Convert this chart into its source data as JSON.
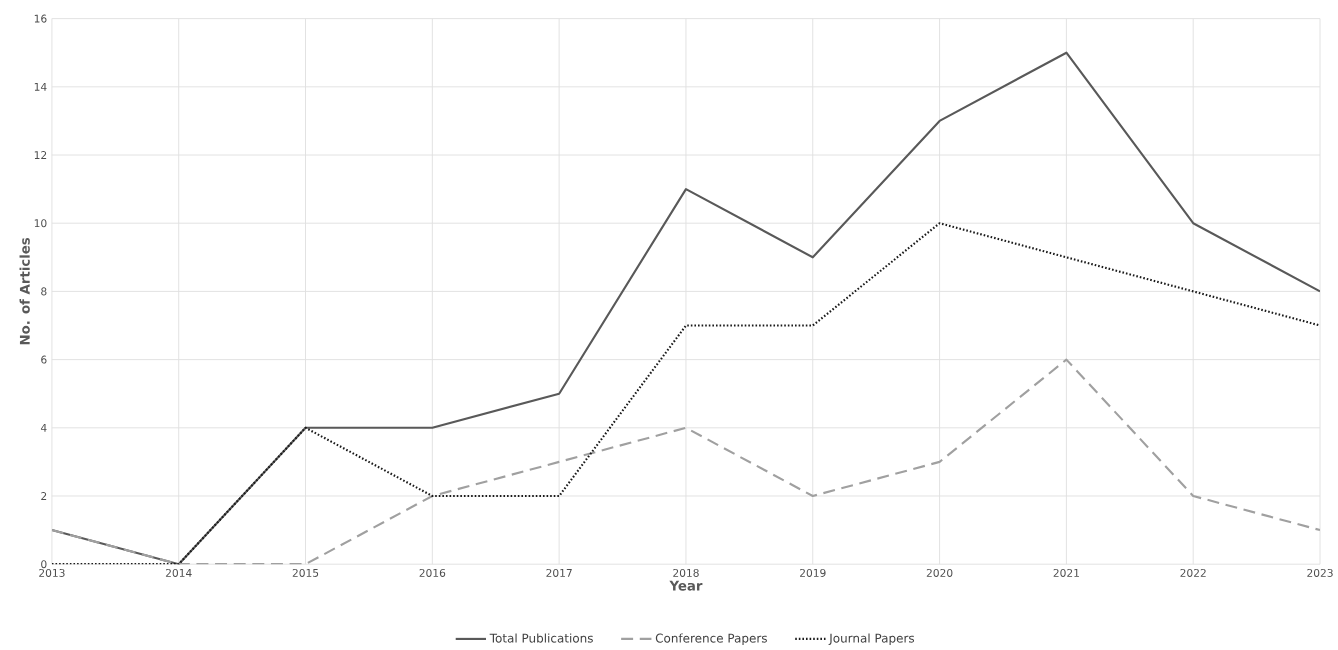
{
  "chart_data": {
    "type": "line",
    "xlabel": "Year",
    "ylabel": "No. of Articles",
    "categories": [
      "2013",
      "2014",
      "2015",
      "2016",
      "2017",
      "2018",
      "2019",
      "2020",
      "2021",
      "2022",
      "2023"
    ],
    "series": [
      {
        "name": "Total Publications",
        "color": "#595959",
        "line_style": "solid",
        "values": [
          1,
          0,
          4,
          4,
          5,
          11,
          9,
          13,
          15,
          10,
          8
        ]
      },
      {
        "name": "Conference Papers",
        "color": "#a0a0a0",
        "line_style": "dashed",
        "values": [
          1,
          0,
          0,
          2,
          3,
          4,
          2,
          3,
          6,
          2,
          1
        ]
      },
      {
        "name": "Journal Papers",
        "color": "#1a1a1a",
        "line_style": "dotted",
        "values": [
          0,
          0,
          4,
          2,
          2,
          7,
          7,
          10,
          9,
          8,
          7
        ]
      }
    ],
    "ylim": [
      0,
      16
    ],
    "yticks": [
      0,
      2,
      4,
      6,
      8,
      10,
      12,
      14,
      16
    ],
    "grid": true,
    "legend": "bottom"
  }
}
